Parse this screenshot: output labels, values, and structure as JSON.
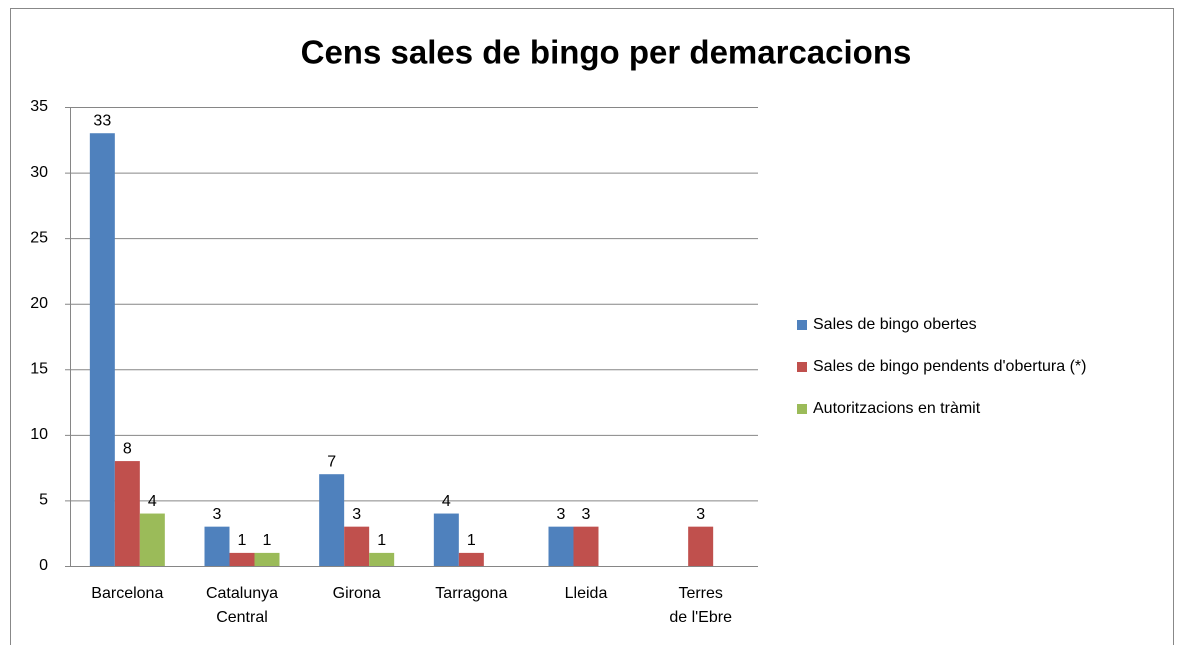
{
  "chart_data": {
    "type": "bar",
    "title": "Cens sales de bingo per demarcacions",
    "categories": [
      "Barcelona",
      "Catalunya Central",
      "Girona",
      "Tarragona",
      "Lleida",
      "Terres de l'Ebre"
    ],
    "series": [
      {
        "name": "Sales de bingo obertes",
        "color": "#4f81bd",
        "values": [
          33,
          3,
          7,
          4,
          3,
          null
        ]
      },
      {
        "name": "Sales de bingo pendents d'obertura (*)",
        "color": "#c0504d",
        "values": [
          8,
          1,
          3,
          1,
          3,
          3
        ]
      },
      {
        "name": "Autoritzacions en tràmit",
        "color": "#9bbb59",
        "values": [
          4,
          1,
          1,
          null,
          null,
          null
        ]
      }
    ],
    "ylim": [
      0,
      35
    ],
    "yticks": [
      0,
      5,
      10,
      15,
      20,
      25,
      30,
      35
    ],
    "grid": true,
    "legend": "right",
    "data_labels": true
  }
}
